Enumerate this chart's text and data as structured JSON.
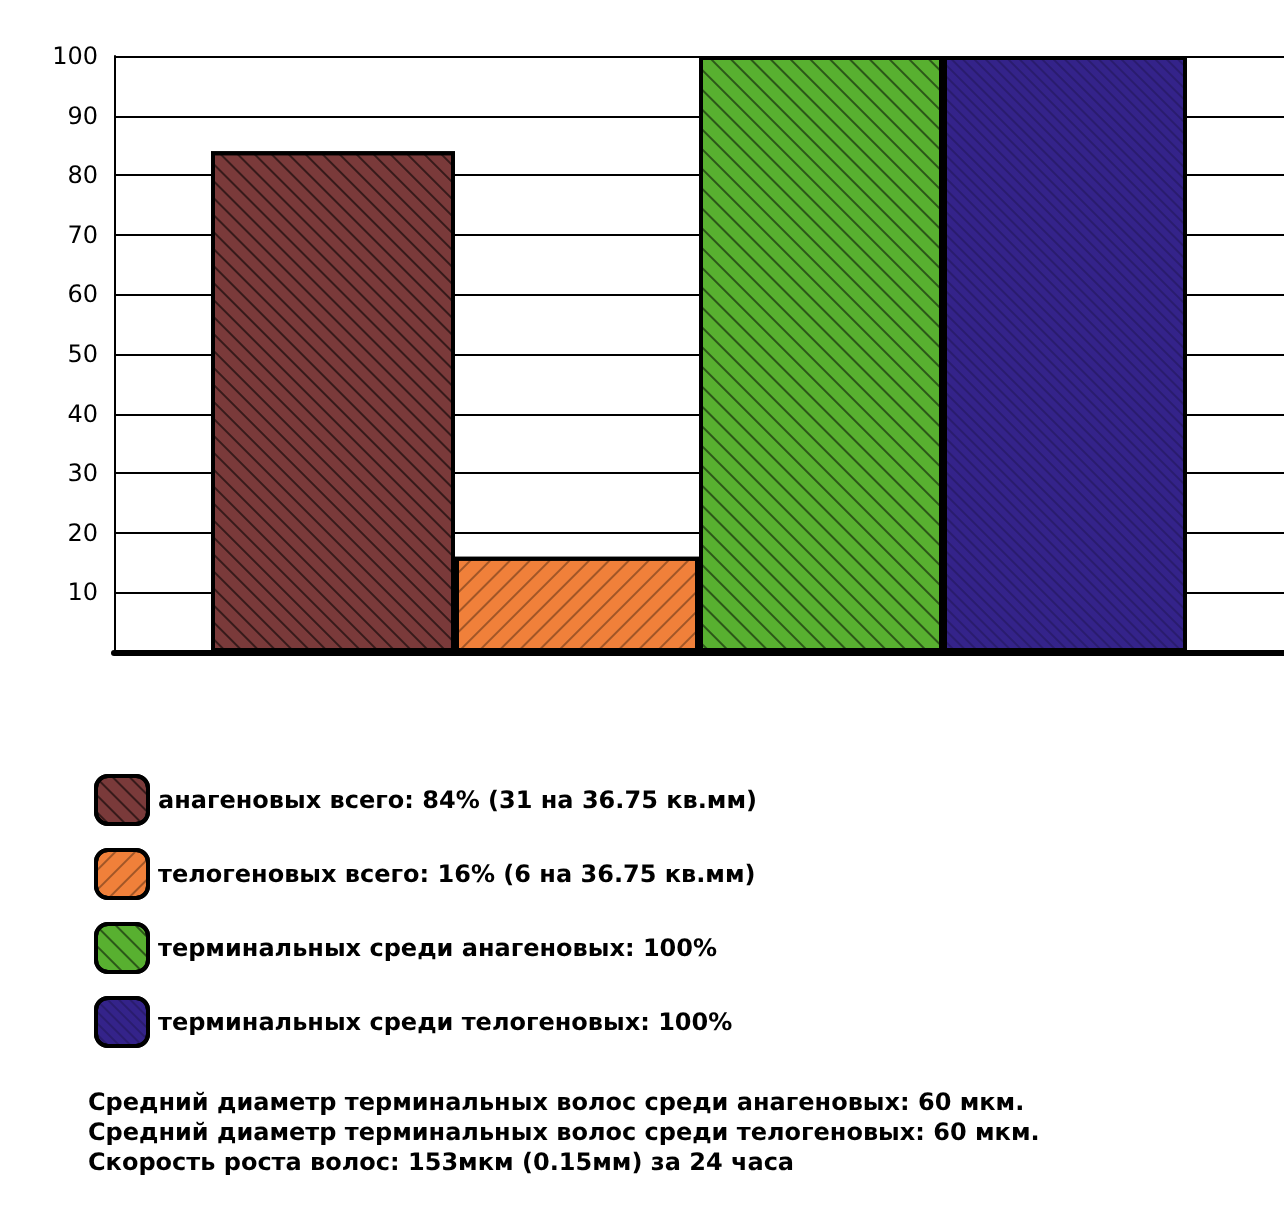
{
  "chart_data": {
    "type": "bar",
    "categories": [
      null
    ],
    "series": [
      {
        "name": "анагеновых всего: 84% (31 на 36.75 кв.мм)",
        "color": "#7a3a3a",
        "values": [
          84
        ]
      },
      {
        "name": "телогеновых всего: 16% (6 на 36.75 кв.мм)",
        "color": "#f0803a",
        "values": [
          16
        ]
      },
      {
        "name": "терминальных среди анагеновых: 100%",
        "color": "#58b030",
        "values": [
          100
        ]
      },
      {
        "name": "терминальных среди телогеновых: 100%",
        "color": "#34238a",
        "values": [
          100
        ]
      }
    ],
    "ylim": [
      0,
      100
    ],
    "yticks": [
      {
        "value": 0,
        "label": null
      },
      10,
      20,
      30,
      40,
      50,
      60,
      70,
      80,
      90,
      100
    ],
    "grid": "y",
    "legend": "bottom",
    "annotations": [
      "Средний диаметр терминальных волос среди анагеновых: 60 мкм.",
      "Средний диаметр терминальных волос среди телогеновых: 60 мкм.",
      "Скорость роста волос: 153мкм (0.15мм) за 24 часа"
    ]
  }
}
